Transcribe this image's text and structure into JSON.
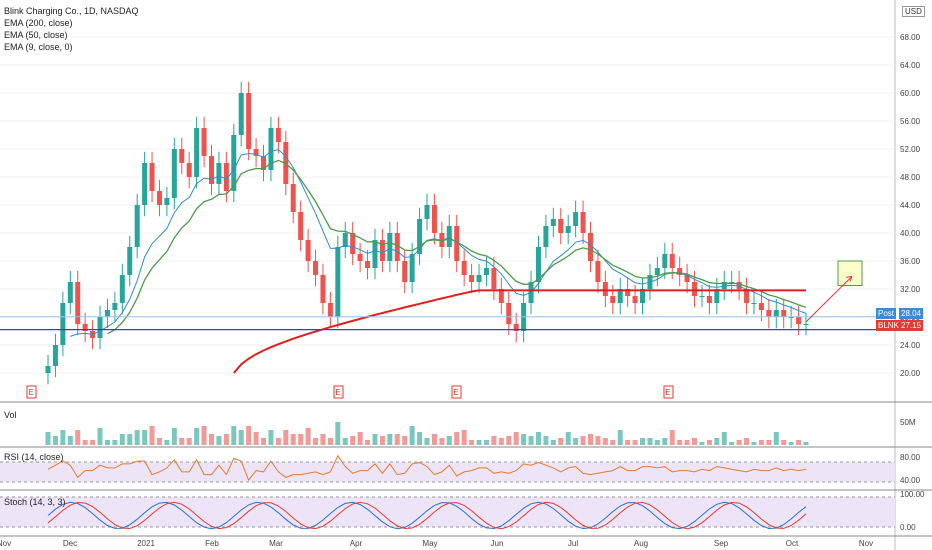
{
  "legend": {
    "title": "Blink Charging Co., 1D, NASDAQ",
    "ema200": "EMA (200, close)",
    "ema50": "EMA (50, close)",
    "ema9": "EMA (9, close, 0)"
  },
  "panes": {
    "volume_label": "Vol",
    "rsi_label": "RSI (14, close)",
    "stoch_label": "Stoch (14, 3, 3)"
  },
  "currency": "USD",
  "tags": {
    "post_label": "Post",
    "post_value": "28.04",
    "ticker": "BLNK",
    "last_value": "27.15"
  },
  "colors": {
    "up": "#26a69a",
    "down": "#ef5350",
    "ema200": "#e02020",
    "ema50": "#4f9a4a",
    "ema9": "#2e8bd0",
    "support": "#3a3ad8",
    "target": "#ffffcc"
  },
  "chart_data": {
    "type": "candlestick",
    "price_ticks": [
      "68.00",
      "64.00",
      "60.00",
      "56.00",
      "52.00",
      "48.00",
      "44.00",
      "40.00",
      "36.00",
      "32.00",
      "28.00",
      "24.00",
      "20.00"
    ],
    "price_values": [
      68,
      64,
      60,
      56,
      52,
      48,
      44,
      40,
      36,
      32,
      28,
      24,
      20
    ],
    "x_labels": [
      "Nov",
      "Dec",
      "2021",
      "Feb",
      "Mar",
      "Apr",
      "May",
      "Jun",
      "Jul",
      "Aug",
      "Sep",
      "Oct",
      "Nov"
    ],
    "volume_ticks": [
      "50M"
    ],
    "rsi_ticks": [
      "80.00",
      "40.00"
    ],
    "stoch_ticks": [
      "100.00",
      "0.00"
    ],
    "support_level": 26.2,
    "ema200_level_end": 31.8,
    "ema50_level_end": 31.0,
    "target_zone": [
      32.5,
      36
    ],
    "closes": [
      21,
      24,
      30,
      33,
      27,
      26,
      25,
      28,
      29,
      30,
      34,
      38,
      44,
      50,
      46,
      44,
      45,
      52,
      50,
      48,
      55,
      51,
      47,
      50,
      46,
      54,
      60,
      52,
      51,
      49,
      55,
      53,
      47,
      43,
      39,
      36,
      34,
      30,
      28,
      38,
      40,
      37,
      36,
      35,
      39,
      36,
      40,
      36,
      33,
      37,
      42,
      44,
      40,
      38,
      41,
      36,
      34,
      33,
      34,
      35,
      32,
      30,
      27,
      26,
      30,
      33,
      38,
      41,
      42,
      40,
      41,
      43,
      40,
      36,
      33,
      31,
      30,
      32,
      31,
      30,
      32,
      34,
      35,
      37,
      35,
      34,
      33,
      31,
      31,
      30,
      32,
      33,
      33,
      32,
      30,
      30,
      29,
      28,
      29,
      28,
      28,
      27,
      27
    ],
    "events": [
      "E",
      "E",
      "E",
      "E"
    ]
  }
}
